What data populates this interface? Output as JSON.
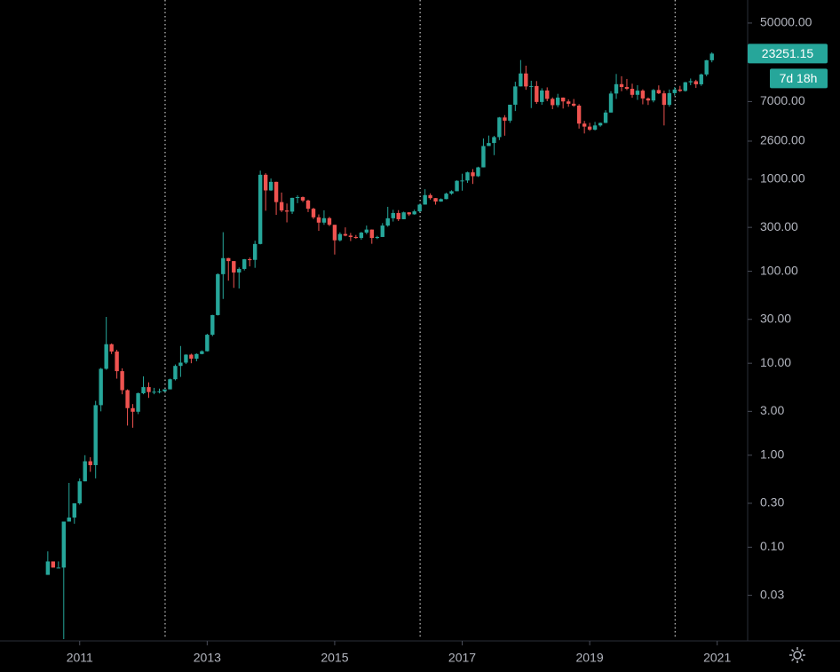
{
  "chart_data": {
    "type": "candlestick",
    "log_scale": true,
    "up_color": "#26a69a",
    "down_color": "#ef5350",
    "xlim": [
      2009.75,
      2021.45
    ],
    "xticks": [
      2011,
      2013,
      2015,
      2017,
      2019,
      2021
    ],
    "ylim": [
      0.01,
      89000
    ],
    "yticks": [
      {
        "value": 0.03,
        "label": "0.03"
      },
      {
        "value": 0.1,
        "label": "0.10"
      },
      {
        "value": 0.3,
        "label": "0.30"
      },
      {
        "value": 1,
        "label": "1.00"
      },
      {
        "value": 3,
        "label": "3.00"
      },
      {
        "value": 10,
        "label": "10.00"
      },
      {
        "value": 30,
        "label": "30.00"
      },
      {
        "value": 100,
        "label": "100.00"
      },
      {
        "value": 300,
        "label": "300.00"
      },
      {
        "value": 1000,
        "label": "1000.00"
      },
      {
        "value": 2600,
        "label": "2600.00"
      },
      {
        "value": 7000,
        "label": "7000.00"
      },
      {
        "value": 50000,
        "label": "50000.00"
      }
    ],
    "vlines": [
      2012.34,
      2016.34,
      2020.34
    ],
    "countdown": "7d 18h",
    "x": [
      2010.5,
      2010.583,
      2010.667,
      2010.75,
      2010.833,
      2010.917,
      2011,
      2011.083,
      2011.167,
      2011.25,
      2011.333,
      2011.417,
      2011.5,
      2011.583,
      2011.667,
      2011.75,
      2011.833,
      2011.917,
      2012,
      2012.083,
      2012.167,
      2012.25,
      2012.333,
      2012.417,
      2012.5,
      2012.583,
      2012.667,
      2012.75,
      2012.833,
      2012.917,
      2013,
      2013.083,
      2013.167,
      2013.25,
      2013.333,
      2013.417,
      2013.5,
      2013.583,
      2013.667,
      2013.75,
      2013.833,
      2013.917,
      2014,
      2014.083,
      2014.167,
      2014.25,
      2014.333,
      2014.417,
      2014.5,
      2014.583,
      2014.667,
      2014.75,
      2014.833,
      2014.917,
      2015,
      2015.083,
      2015.167,
      2015.25,
      2015.333,
      2015.417,
      2015.5,
      2015.583,
      2015.667,
      2015.75,
      2015.833,
      2015.917,
      2016,
      2016.083,
      2016.167,
      2016.25,
      2016.333,
      2016.417,
      2016.5,
      2016.583,
      2016.667,
      2016.75,
      2016.833,
      2016.917,
      2017,
      2017.083,
      2017.167,
      2017.25,
      2017.333,
      2017.417,
      2017.5,
      2017.583,
      2017.667,
      2017.75,
      2017.833,
      2017.917,
      2018,
      2018.083,
      2018.167,
      2018.25,
      2018.333,
      2018.417,
      2018.5,
      2018.583,
      2018.667,
      2018.75,
      2018.833,
      2018.917,
      2019,
      2019.083,
      2019.167,
      2019.25,
      2019.333,
      2019.417,
      2019.5,
      2019.583,
      2019.667,
      2019.75,
      2019.833,
      2019.917,
      2020,
      2020.083,
      2020.167,
      2020.25,
      2020.333,
      2020.417,
      2020.5,
      2020.583,
      2020.667,
      2020.75,
      2020.833,
      2020.917
    ],
    "open": [
      0.05,
      0.07,
      0.06,
      0.06,
      0.19,
      0.21,
      0.3,
      0.52,
      0.86,
      0.78,
      3.5,
      8.7,
      16.1,
      13.4,
      8.2,
      5.1,
      3.25,
      2.97,
      4.72,
      5.5,
      4.86,
      4.9,
      4.95,
      5.2,
      6.7,
      9.35,
      10.15,
      12.4,
      11.2,
      12.6,
      13.5,
      20.4,
      33.4,
      93,
      139,
      129,
      97,
      106,
      135,
      133,
      198,
      1120,
      757,
      938,
      565,
      458,
      445,
      628,
      640,
      588,
      478,
      386,
      338,
      378,
      320,
      217,
      254,
      244,
      236,
      230,
      263,
      284,
      230,
      236,
      314,
      377,
      430,
      368,
      437,
      416,
      448,
      531,
      673,
      624,
      573,
      609,
      698,
      742,
      963,
      970,
      1190,
      1080,
      1348,
      2300,
      2480,
      2875,
      4700,
      4340,
      6470,
      10230,
      14150,
      10220,
      10330,
      6930,
      9240,
      7490,
      6400,
      7730,
      7020,
      6630,
      6320,
      4030,
      3740,
      3460,
      3850,
      4100,
      5320,
      8560,
      10820,
      10080,
      9630,
      8290,
      9200,
      7570,
      7190,
      9350,
      8600,
      6440,
      8650,
      9460,
      9140,
      11350,
      11650,
      10790,
      13800,
      19700
    ],
    "high": [
      0.09,
      0.07,
      0.07,
      0.19,
      0.5,
      0.3,
      0.56,
      1.0,
      0.95,
      3.9,
      8.9,
      31.9,
      16.4,
      14,
      8.8,
      5.2,
      3.6,
      4.8,
      7.2,
      6.2,
      5.4,
      5.3,
      5.2,
      6.8,
      9.7,
      15.4,
      12.5,
      12.7,
      12.8,
      13.8,
      20.9,
      33.6,
      95,
      266,
      140,
      129,
      110,
      136,
      141,
      215,
      1242,
      1163,
      1020,
      941,
      718,
      545,
      630,
      670,
      650,
      600,
      490,
      415,
      460,
      390,
      320,
      265,
      300,
      261,
      248,
      268,
      314,
      285,
      243,
      334,
      502,
      466,
      462,
      445,
      440,
      467,
      540,
      780,
      704,
      625,
      620,
      715,
      760,
      975,
      1150,
      1210,
      1290,
      1370,
      2780,
      2990,
      2970,
      4760,
      4980,
      6470,
      11500,
      19800,
      17200,
      11790,
      11700,
      9770,
      9990,
      7760,
      8500,
      7760,
      7400,
      7460,
      6560,
      4310,
      4110,
      4210,
      4140,
      5640,
      9070,
      13970,
      13200,
      12330,
      10950,
      10540,
      9510,
      7750,
      9580,
      10500,
      9190,
      9470,
      10070,
      10380,
      11450,
      12470,
      12070,
      14100,
      19870,
      24000
    ],
    "low": [
      0.05,
      0.06,
      0.06,
      0.01,
      0.19,
      0.18,
      0.29,
      0.52,
      0.66,
      0.56,
      3.0,
      8.5,
      12.6,
      6.8,
      4.6,
      2.1,
      1.99,
      2.8,
      4.6,
      4.2,
      4.6,
      4.7,
      4.9,
      5.2,
      6.5,
      7.1,
      9.8,
      10,
      10.5,
      12.5,
      13.4,
      19.7,
      33,
      50,
      79,
      66,
      65,
      102,
      113,
      109,
      196,
      455,
      750,
      410,
      440,
      340,
      420,
      550,
      565,
      440,
      370,
      275,
      320,
      310,
      152,
      211,
      240,
      213,
      226,
      220,
      253,
      199,
      224,
      236,
      305,
      347,
      352,
      368,
      400,
      412,
      440,
      530,
      600,
      530,
      570,
      605,
      680,
      740,
      752,
      915,
      890,
      1060,
      1347,
      2300,
      1830,
      2670,
      2980,
      4110,
      5520,
      10200,
      9400,
      5950,
      6600,
      6450,
      7060,
      5790,
      6070,
      5880,
      6150,
      6140,
      3560,
      3150,
      3360,
      3400,
      3730,
      4080,
      5320,
      7480,
      9070,
      9320,
      7710,
      7300,
      6530,
      6430,
      6870,
      8450,
      3850,
      6150,
      8110,
      8900,
      8980,
      10540,
      9850,
      10370,
      13200,
      18700
    ],
    "close": [
      0.07,
      0.06,
      0.06,
      0.19,
      0.21,
      0.3,
      0.52,
      0.86,
      0.78,
      3.5,
      8.7,
      16.1,
      13.4,
      8.2,
      5.1,
      3.25,
      2.97,
      4.72,
      5.5,
      4.86,
      4.9,
      4.95,
      5.2,
      6.7,
      9.35,
      10.15,
      12.4,
      11.2,
      12.6,
      13.5,
      20.4,
      33.4,
      93,
      139,
      129,
      97,
      106,
      135,
      133,
      198,
      1120,
      757,
      938,
      565,
      458,
      445,
      628,
      640,
      588,
      478,
      386,
      338,
      378,
      320,
      217,
      254,
      244,
      236,
      230,
      263,
      284,
      230,
      236,
      314,
      377,
      430,
      368,
      437,
      416,
      448,
      531,
      673,
      624,
      573,
      609,
      698,
      742,
      963,
      970,
      1190,
      1080,
      1348,
      2300,
      2480,
      2875,
      4700,
      4340,
      6470,
      10230,
      14150,
      10220,
      10330,
      6930,
      9240,
      7490,
      6400,
      7730,
      7020,
      6630,
      6320,
      4030,
      3740,
      3460,
      3850,
      4100,
      5320,
      8560,
      10820,
      10080,
      9630,
      8290,
      9200,
      7570,
      7190,
      9350,
      8600,
      6440,
      8650,
      9460,
      9140,
      11350,
      11650,
      10790,
      13800,
      19700,
      23251.15
    ]
  }
}
